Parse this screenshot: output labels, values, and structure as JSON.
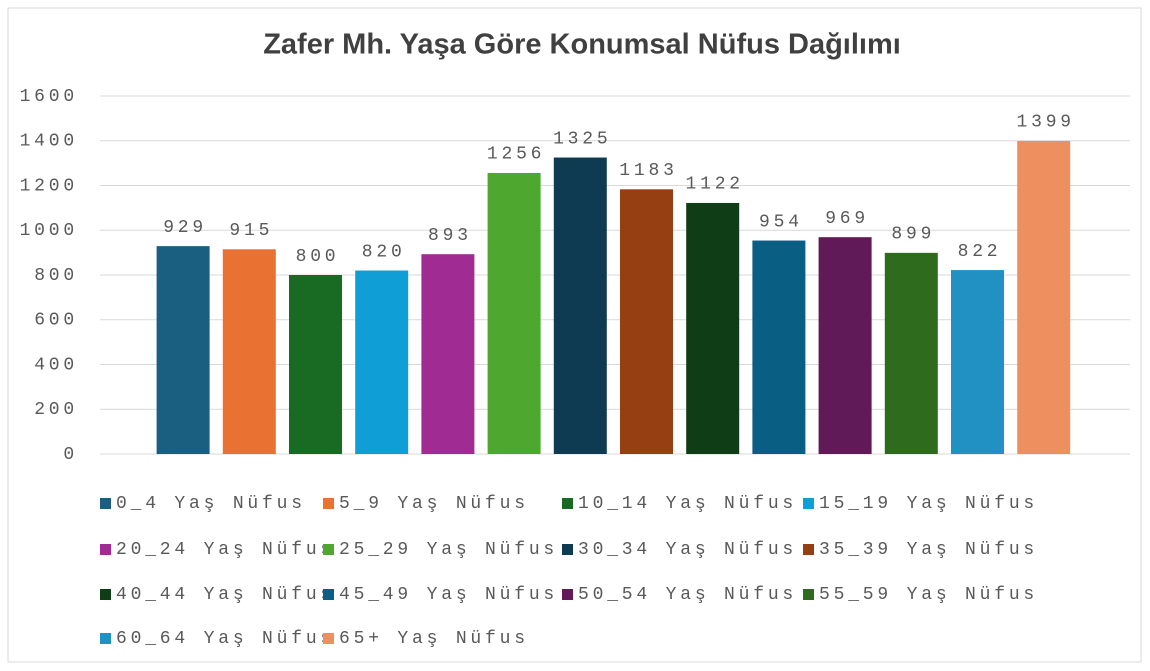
{
  "chart_data": {
    "type": "bar",
    "title": "Zafer Mh. Yaşa Göre Konumsal Nüfus Dağılımı",
    "series": [
      {
        "name": "0_4 Yaş Nüfus",
        "color": "#1a5e80",
        "values": [
          929
        ]
      },
      {
        "name": "5_9 Yaş Nüfus",
        "color": "#e97132",
        "values": [
          915
        ]
      },
      {
        "name": "10_14 Yaş Nüfus",
        "color": "#196b24",
        "values": [
          800
        ]
      },
      {
        "name": "15_19 Yaş Nüfus",
        "color": "#0f9ed5",
        "values": [
          820
        ]
      },
      {
        "name": "20_24 Yaş Nüfus",
        "color": "#a02b93",
        "values": [
          893
        ]
      },
      {
        "name": "25_29 Yaş Nüfus",
        "color": "#4ea72e",
        "values": [
          1256
        ]
      },
      {
        "name": "30_34 Yaş Nüfus",
        "color": "#0e3a52",
        "values": [
          1325
        ]
      },
      {
        "name": "35_39 Yaş Nüfus",
        "color": "#963f12",
        "values": [
          1183
        ]
      },
      {
        "name": "40_44 Yaş Nüfus",
        "color": "#0f3e16",
        "values": [
          1122
        ]
      },
      {
        "name": "45_49 Yaş Nüfus",
        "color": "#085e83",
        "values": [
          954
        ]
      },
      {
        "name": "50_54 Yaş Nüfus",
        "color": "#5f1a57",
        "values": [
          969
        ]
      },
      {
        "name": "55_59 Yaş Nüfus",
        "color": "#2f6b1c",
        "values": [
          899
        ]
      },
      {
        "name": "60_64 Yaş Nüfus",
        "color": "#2191c4",
        "values": [
          822
        ]
      },
      {
        "name": "65+ Yaş Nüfus",
        "color": "#ee8f5f",
        "values": [
          1399
        ]
      }
    ],
    "ylim": [
      0,
      1600
    ],
    "yticks": [
      0,
      200,
      400,
      600,
      800,
      1000,
      1200,
      1400,
      1600
    ],
    "grid": true,
    "legend": "bottom"
  }
}
